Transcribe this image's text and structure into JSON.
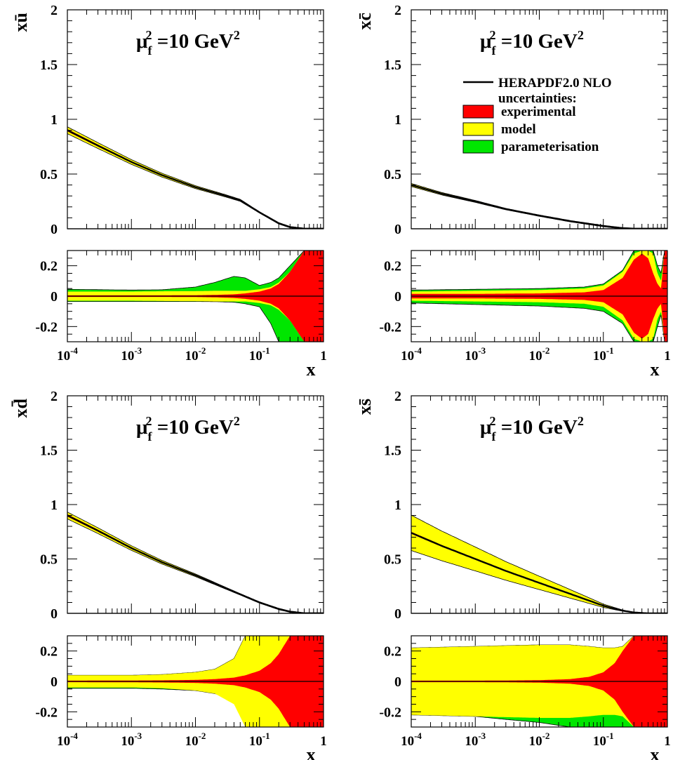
{
  "colors": {
    "experimental": "#ff0000",
    "model": "#ffff00",
    "parameterisation": "#00e600",
    "central": "#000000"
  },
  "legend": {
    "central_label": "HERAPDF2.0 NLO",
    "heading": "uncertainties:",
    "items": [
      "experimental",
      "model",
      "parameterisation"
    ],
    "placement": "top-right of x-cbar panel"
  },
  "chart_data": [
    {
      "type": "area",
      "name": "ubar",
      "ylabel": "xū",
      "annotation": "μ_f² =10 GeV²",
      "xscale": "log",
      "xlim": [
        0.0001,
        1
      ],
      "ylim": [
        0,
        2
      ],
      "yticks": [
        "0",
        "0.5",
        "1",
        "1.5",
        "2"
      ],
      "x": [
        0.0001,
        0.0003,
        0.001,
        0.003,
        0.01,
        0.03,
        0.05,
        0.1,
        0.2,
        0.3,
        0.5,
        1
      ],
      "central": [
        0.9,
        0.76,
        0.61,
        0.49,
        0.38,
        0.3,
        0.26,
        0.15,
        0.05,
        0.015,
        0.0,
        0.0
      ],
      "ratio": {
        "ylim": [
          -0.3,
          0.3
        ],
        "yticks": [
          "0.2",
          "0",
          "-0.2"
        ],
        "x": [
          0.0001,
          0.001,
          0.003,
          0.01,
          0.02,
          0.04,
          0.06,
          0.1,
          0.15,
          0.2,
          0.3,
          0.5,
          1
        ],
        "exp": [
          0.005,
          0.005,
          0.005,
          0.006,
          0.008,
          0.012,
          0.018,
          0.03,
          0.05,
          0.08,
          0.16,
          0.3,
          0.3
        ],
        "model": [
          0.03,
          0.03,
          0.032,
          0.033,
          0.035,
          0.035,
          0.035,
          0.045,
          0.06,
          0.09,
          0.16,
          0.3,
          0.3
        ],
        "total_up": [
          0.045,
          0.04,
          0.042,
          0.06,
          0.09,
          0.13,
          0.12,
          0.07,
          0.09,
          0.12,
          0.2,
          0.3,
          0.3
        ],
        "total_down": [
          -0.035,
          -0.035,
          -0.035,
          -0.035,
          -0.036,
          -0.04,
          -0.05,
          -0.07,
          -0.18,
          -0.3,
          -0.3,
          -0.3,
          -0.3
        ],
        "xlabel": "x"
      }
    },
    {
      "type": "area",
      "name": "cbar",
      "ylabel": "xc̄",
      "annotation": "μ_f² =10 GeV²",
      "xscale": "log",
      "xlim": [
        0.0001,
        1
      ],
      "ylim": [
        0,
        2
      ],
      "yticks": [
        "0",
        "0.5",
        "1",
        "1.5",
        "2"
      ],
      "x": [
        0.0001,
        0.0003,
        0.001,
        0.003,
        0.01,
        0.03,
        0.1,
        0.2,
        0.3,
        0.5,
        1
      ],
      "central": [
        0.4,
        0.32,
        0.25,
        0.18,
        0.12,
        0.07,
        0.025,
        0.005,
        0.0,
        0.0,
        0.0
      ],
      "ratio": {
        "ylim": [
          -0.3,
          0.3
        ],
        "yticks": [
          "0.2",
          "0",
          "-0.2"
        ],
        "x": [
          0.0001,
          0.001,
          0.01,
          0.05,
          0.1,
          0.2,
          0.3,
          0.4,
          0.5,
          0.6,
          0.7,
          0.8,
          0.9,
          1
        ],
        "exp": [
          0.015,
          0.015,
          0.018,
          0.025,
          0.04,
          0.12,
          0.24,
          0.28,
          0.25,
          0.15,
          0.08,
          0.05,
          0.3,
          0.3
        ],
        "model": [
          0.03,
          0.035,
          0.04,
          0.05,
          0.07,
          0.16,
          0.28,
          0.3,
          0.3,
          0.28,
          0.15,
          0.1,
          0.3,
          0.3
        ],
        "total_up": [
          0.04,
          0.045,
          0.05,
          0.06,
          0.08,
          0.17,
          0.3,
          0.3,
          0.3,
          0.3,
          0.2,
          0.15,
          0.3,
          0.3
        ],
        "total_down": [
          -0.045,
          -0.055,
          -0.065,
          -0.08,
          -0.1,
          -0.18,
          -0.3,
          -0.3,
          -0.3,
          -0.3,
          -0.2,
          -0.12,
          -0.3,
          -0.3
        ],
        "xlabel": "x"
      }
    },
    {
      "type": "area",
      "name": "dbar",
      "ylabel": "xd̄",
      "annotation": "μ_f² =10 GeV²",
      "xscale": "log",
      "xlim": [
        0.0001,
        1
      ],
      "ylim": [
        0,
        2
      ],
      "yticks": [
        "0",
        "0.5",
        "1",
        "1.5",
        "2"
      ],
      "x": [
        0.0001,
        0.0003,
        0.001,
        0.003,
        0.01,
        0.03,
        0.1,
        0.2,
        0.3,
        0.5,
        1
      ],
      "central": [
        0.9,
        0.76,
        0.6,
        0.47,
        0.35,
        0.23,
        0.1,
        0.04,
        0.015,
        0.0,
        0.0
      ],
      "ratio": {
        "ylim": [
          -0.3,
          0.3
        ],
        "yticks": [
          "0.2",
          "0",
          "-0.2"
        ],
        "x": [
          0.0001,
          0.001,
          0.003,
          0.01,
          0.02,
          0.04,
          0.06,
          0.1,
          0.15,
          0.2,
          0.3,
          0.5,
          1
        ],
        "exp": [
          0.005,
          0.006,
          0.007,
          0.01,
          0.015,
          0.025,
          0.04,
          0.07,
          0.12,
          0.18,
          0.3,
          0.3,
          0.3
        ],
        "model": [
          0.04,
          0.04,
          0.045,
          0.06,
          0.08,
          0.15,
          0.3,
          0.3,
          0.3,
          0.3,
          0.3,
          0.3,
          0.3
        ],
        "total_up": [
          0.04,
          0.04,
          0.045,
          0.06,
          0.08,
          0.15,
          0.3,
          0.3,
          0.3,
          0.3,
          0.3,
          0.3,
          0.3
        ],
        "total_down": [
          -0.045,
          -0.045,
          -0.05,
          -0.06,
          -0.08,
          -0.12,
          -0.17,
          -0.3,
          -0.3,
          -0.3,
          -0.3,
          -0.3,
          -0.3
        ],
        "xlabel": "x"
      }
    },
    {
      "type": "area",
      "name": "sbar",
      "ylabel": "xs̄",
      "annotation": "μ_f² =10 GeV²",
      "xscale": "log",
      "xlim": [
        0.0001,
        1
      ],
      "ylim": [
        0,
        2
      ],
      "yticks": [
        "0",
        "0.5",
        "1",
        "1.5",
        "2"
      ],
      "x": [
        0.0001,
        0.0003,
        0.001,
        0.003,
        0.01,
        0.03,
        0.1,
        0.2,
        0.3,
        0.5,
        1
      ],
      "central": [
        0.74,
        0.62,
        0.5,
        0.39,
        0.28,
        0.18,
        0.07,
        0.025,
        0.008,
        0.0,
        0.0
      ],
      "band_rel": 0.22,
      "ratio": {
        "ylim": [
          -0.3,
          0.3
        ],
        "yticks": [
          "0.2",
          "0",
          "-0.2"
        ],
        "x": [
          0.0001,
          0.001,
          0.003,
          0.01,
          0.03,
          0.06,
          0.1,
          0.15,
          0.2,
          0.3,
          0.5,
          1
        ],
        "exp": [
          0.005,
          0.005,
          0.006,
          0.008,
          0.015,
          0.03,
          0.06,
          0.12,
          0.2,
          0.3,
          0.3,
          0.3
        ],
        "model": [
          0.22,
          0.23,
          0.235,
          0.24,
          0.24,
          0.23,
          0.22,
          0.22,
          0.23,
          0.3,
          0.3,
          0.3
        ],
        "total_up": [
          0.22,
          0.23,
          0.235,
          0.24,
          0.24,
          0.23,
          0.22,
          0.22,
          0.23,
          0.3,
          0.3,
          0.3
        ],
        "total_down": [
          -0.22,
          -0.23,
          -0.25,
          -0.27,
          -0.3,
          -0.3,
          -0.3,
          -0.3,
          -0.3,
          -0.3,
          -0.3,
          -0.3
        ],
        "xlabel": "x"
      }
    }
  ],
  "x_tick_labels": [
    {
      "base": "10",
      "exp": "-4"
    },
    {
      "base": "10",
      "exp": "-3"
    },
    {
      "base": "10",
      "exp": "-2"
    },
    {
      "base": "10",
      "exp": "-1"
    },
    {
      "base": "1",
      "exp": ""
    }
  ]
}
